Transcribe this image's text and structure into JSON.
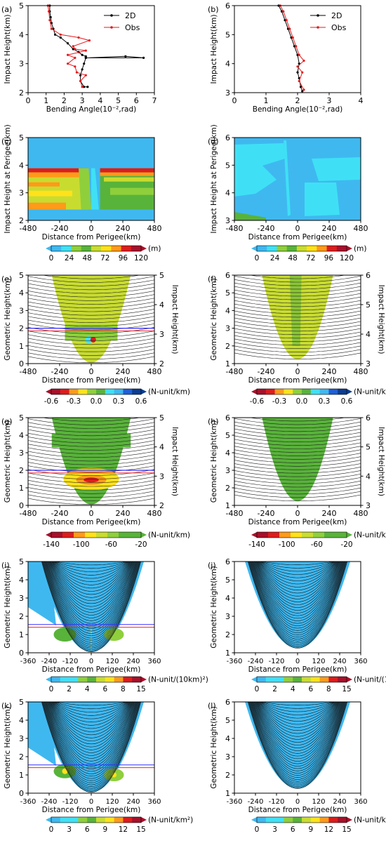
{
  "colors": {
    "model": "#000000",
    "obs": "#e41a1c",
    "sky": "#3fb8f0",
    "cyan": "#3fe0f5",
    "lightgreen": "#8fcf3c",
    "green": "#58b33a",
    "yellowgreen": "#c8dc30",
    "yellow": "#ffe21a",
    "orange": "#ff9a1a",
    "red": "#dd1c1c",
    "darkred": "#a8102a",
    "blue": "#1f5fd6",
    "deepblue": "#0b3d91",
    "ray": "#222222",
    "line_red": "#ff2020",
    "line_blue": "#3030ff"
  },
  "colorbars": {
    "height": {
      "ticks": [
        "0",
        "24",
        "48",
        "72",
        "96",
        "120"
      ],
      "unit": "(m)"
    },
    "gradient": {
      "ticks": [
        "-0.6",
        "-0.3",
        "0.0",
        "0.3",
        "0.6"
      ],
      "unit": "(N-unit/km)"
    },
    "refract": {
      "ticks": [
        "-140",
        "-100",
        "-60",
        "-20"
      ],
      "unit": "(N-unit/km)"
    },
    "weight10": {
      "ticks": [
        "0",
        "2",
        "4",
        "6",
        "8",
        "15"
      ],
      "unit": "(N-unit/(10km)²)"
    },
    "weightkm": {
      "ticks": [
        "0",
        "3",
        "6",
        "9",
        "12",
        "15"
      ],
      "unit": "(N-unit/km²)"
    }
  },
  "chart_data": [
    {
      "panel": "(a)",
      "type": "line",
      "xlabel": "Bending Angle(10⁻²,rad)",
      "ylabel": "Impact Height(km)",
      "xlim": [
        0,
        7
      ],
      "ylim": [
        2,
        5
      ],
      "xticks": [
        "0",
        "1",
        "2",
        "3",
        "4",
        "5",
        "6",
        "7"
      ],
      "yticks": [
        "2",
        "3",
        "4",
        "5"
      ],
      "legend": "top-right",
      "series": [
        {
          "name": "2D",
          "color": "model",
          "points": [
            [
              1.2,
              5.0
            ],
            [
              1.2,
              4.8
            ],
            [
              1.25,
              4.6
            ],
            [
              1.3,
              4.4
            ],
            [
              1.4,
              4.2
            ],
            [
              1.5,
              4.0
            ],
            [
              1.8,
              3.9
            ],
            [
              2.2,
              3.7
            ],
            [
              2.5,
              3.5
            ],
            [
              2.8,
              3.4
            ],
            [
              3.0,
              3.3
            ],
            [
              3.2,
              3.25
            ],
            [
              3.2,
              3.2
            ],
            [
              6.4,
              3.2
            ],
            [
              5.4,
              3.25
            ],
            [
              3.2,
              3.2
            ],
            [
              3.1,
              3.0
            ],
            [
              3.0,
              2.8
            ],
            [
              2.9,
              2.6
            ],
            [
              2.9,
              2.4
            ],
            [
              3.1,
              2.2
            ],
            [
              3.3,
              2.2
            ]
          ]
        },
        {
          "name": "Obs",
          "color": "obs",
          "points": [
            [
              1.1,
              5.0
            ],
            [
              1.15,
              4.8
            ],
            [
              1.2,
              4.5
            ],
            [
              1.3,
              4.2
            ],
            [
              1.8,
              4.0
            ],
            [
              2.8,
              3.9
            ],
            [
              3.4,
              3.8
            ],
            [
              2.5,
              3.6
            ],
            [
              2.6,
              3.5
            ],
            [
              3.2,
              3.45
            ],
            [
              2.2,
              3.3
            ],
            [
              2.6,
              3.2
            ],
            [
              2.2,
              3.0
            ],
            [
              2.6,
              2.9
            ],
            [
              2.7,
              2.7
            ],
            [
              3.2,
              2.6
            ],
            [
              2.9,
              2.4
            ],
            [
              3.0,
              2.2
            ]
          ]
        }
      ]
    },
    {
      "panel": "(b)",
      "type": "line",
      "xlabel": "Bending Angle(10⁻²,rad)",
      "ylabel": "Impact Height(km)",
      "xlim": [
        0,
        4
      ],
      "ylim": [
        3,
        6
      ],
      "xticks": [
        "0",
        "1",
        "2",
        "3",
        "4"
      ],
      "yticks": [
        "3",
        "4",
        "5",
        "6"
      ],
      "legend": "top-right",
      "series": [
        {
          "name": "2D",
          "color": "model",
          "points": [
            [
              1.4,
              6.0
            ],
            [
              1.5,
              5.8
            ],
            [
              1.6,
              5.5
            ],
            [
              1.7,
              5.2
            ],
            [
              1.8,
              4.9
            ],
            [
              1.9,
              4.6
            ],
            [
              2.0,
              4.3
            ],
            [
              2.05,
              4.0
            ],
            [
              2.0,
              3.7
            ],
            [
              2.05,
              3.5
            ],
            [
              2.1,
              3.2
            ],
            [
              2.15,
              3.05
            ]
          ]
        },
        {
          "name": "Obs",
          "color": "obs",
          "points": [
            [
              1.45,
              6.0
            ],
            [
              1.55,
              5.8
            ],
            [
              1.65,
              5.5
            ],
            [
              1.75,
              5.2
            ],
            [
              1.85,
              4.9
            ],
            [
              1.95,
              4.6
            ],
            [
              2.05,
              4.3
            ],
            [
              2.2,
              4.1
            ],
            [
              2.0,
              3.9
            ],
            [
              2.15,
              3.7
            ],
            [
              2.05,
              3.4
            ],
            [
              2.2,
              3.1
            ]
          ]
        }
      ]
    },
    {
      "panel": "(c)",
      "type": "heatmap",
      "xlabel": "Distance from Perigee(km)",
      "ylabel": "Impact Height at Perigee(km)",
      "xlim": [
        -480,
        480
      ],
      "ylim": [
        2,
        5
      ],
      "xticks": [
        "-480",
        "-240",
        "0",
        "240",
        "480"
      ],
      "yticks": [
        "2",
        "3",
        "4",
        "5"
      ],
      "colorbar": "height"
    },
    {
      "panel": "(d)",
      "type": "heatmap",
      "xlabel": "Distance from Perigee(km)",
      "ylabel": "Impact Height at Perigee(km)",
      "xlim": [
        -480,
        480
      ],
      "ylim": [
        3,
        6
      ],
      "xticks": [
        "-480",
        "-240",
        "0",
        "240",
        "480"
      ],
      "yticks": [
        "3",
        "4",
        "5",
        "6"
      ],
      "colorbar": "height"
    },
    {
      "panel": "(e)",
      "type": "heatmap",
      "xlabel": "Distance from Perigee(km)",
      "ylabel": "Geometric Height(km)",
      "ylabel2": "Impact Height(km)",
      "xlim": [
        -480,
        480
      ],
      "ylim": [
        0,
        5
      ],
      "xticks": [
        "-480",
        "-240",
        "0",
        "240",
        "480"
      ],
      "yticks": [
        "0",
        "1",
        "2",
        "3",
        "4",
        "5"
      ],
      "y2ticks": [
        "2",
        "3",
        "4",
        "5"
      ],
      "colorbar": "gradient"
    },
    {
      "panel": "(f)",
      "type": "heatmap",
      "xlabel": "Distance from Perigee(km)",
      "ylabel": "Geometric Height(km)",
      "ylabel2": "Impact Height(km)",
      "xlim": [
        -480,
        480
      ],
      "ylim": [
        1,
        6
      ],
      "xticks": [
        "-480",
        "-240",
        "0",
        "240",
        "480"
      ],
      "yticks": [
        "1",
        "2",
        "3",
        "4",
        "5",
        "6"
      ],
      "y2ticks": [
        "3",
        "4",
        "5",
        "6"
      ],
      "colorbar": "gradient"
    },
    {
      "panel": "(g)",
      "type": "heatmap",
      "xlabel": "Distance from Perigee(km)",
      "ylabel": "Geometric Height(km)",
      "ylabel2": "Impact Height(km)",
      "xlim": [
        -480,
        480
      ],
      "ylim": [
        0,
        5
      ],
      "xticks": [
        "-480",
        "-240",
        "0",
        "240",
        "480"
      ],
      "yticks": [
        "0",
        "1",
        "2",
        "3",
        "4",
        "5"
      ],
      "y2ticks": [
        "2",
        "3",
        "4",
        "5"
      ],
      "colorbar": "refract"
    },
    {
      "panel": "(h)",
      "type": "heatmap",
      "xlabel": "Distance from Perigee(km)",
      "ylabel": "Geometric Height(km)",
      "ylabel2": "Impact Height(km)",
      "xlim": [
        -480,
        480
      ],
      "ylim": [
        1,
        6
      ],
      "xticks": [
        "-480",
        "-240",
        "0",
        "240",
        "480"
      ],
      "yticks": [
        "1",
        "2",
        "3",
        "4",
        "5",
        "6"
      ],
      "y2ticks": [
        "3",
        "4",
        "5",
        "6"
      ],
      "colorbar": "refract"
    },
    {
      "panel": "(i)",
      "type": "heatmap",
      "xlabel": "Distance from Perigee(km)",
      "ylabel": "Geometric Height(km)",
      "xlim": [
        -360,
        360
      ],
      "ylim": [
        0,
        5
      ],
      "xticks": [
        "-360",
        "-240",
        "-120",
        "0",
        "120",
        "240",
        "360"
      ],
      "yticks": [
        "0",
        "1",
        "2",
        "3",
        "4",
        "5"
      ],
      "colorbar": "weight10"
    },
    {
      "panel": "(j)",
      "type": "heatmap",
      "xlabel": "Distance from Perigee(km)",
      "ylabel": "Geometric Height(km)",
      "xlim": [
        -360,
        360
      ],
      "ylim": [
        1,
        6
      ],
      "xticks": [
        "-360",
        "-240",
        "-120",
        "0",
        "120",
        "240",
        "360"
      ],
      "yticks": [
        "1",
        "2",
        "3",
        "4",
        "5",
        "6"
      ],
      "colorbar": "weight10"
    },
    {
      "panel": "(k)",
      "type": "heatmap",
      "xlabel": "Distance from Perigee(km)",
      "ylabel": "Geometric Height(km)",
      "xlim": [
        -360,
        360
      ],
      "ylim": [
        0,
        5
      ],
      "xticks": [
        "-360",
        "-240",
        "-120",
        "0",
        "120",
        "240",
        "360"
      ],
      "yticks": [
        "0",
        "1",
        "2",
        "3",
        "4",
        "5"
      ],
      "colorbar": "weightkm"
    },
    {
      "panel": "(l)",
      "type": "heatmap",
      "xlabel": "Distance from Perigee(km)",
      "ylabel": "Geometric Height(km)",
      "xlim": [
        -360,
        360
      ],
      "ylim": [
        1,
        6
      ],
      "xticks": [
        "-360",
        "-240",
        "-120",
        "0",
        "120",
        "240",
        "360"
      ],
      "yticks": [
        "1",
        "2",
        "3",
        "4",
        "5",
        "6"
      ],
      "colorbar": "weightkm"
    }
  ]
}
